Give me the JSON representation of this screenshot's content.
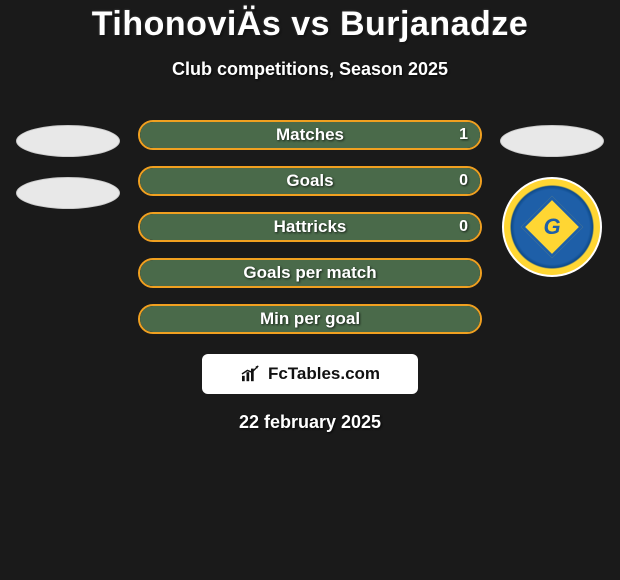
{
  "title": "TihonoviÄs vs Burjanadze",
  "subtitle": "Club competitions, Season 2025",
  "date": "22 february 2025",
  "footer_site": "FcTables.com",
  "colors": {
    "background": "#1a1a1a",
    "bar_border": "#f0a020",
    "bar_fill": "#4a6a4a",
    "text": "#ffffff",
    "badge_blue": "#1e5fa8",
    "badge_yellow": "#ffd633"
  },
  "stats": [
    {
      "label": "Matches",
      "left_fill_pct": 100,
      "right_value": "1"
    },
    {
      "label": "Goals",
      "left_fill_pct": 100,
      "right_value": "0"
    },
    {
      "label": "Hattricks",
      "left_fill_pct": 100,
      "right_value": "0"
    },
    {
      "label": "Goals per match",
      "left_fill_pct": 100,
      "right_value": ""
    },
    {
      "label": "Min per goal",
      "left_fill_pct": 100,
      "right_value": ""
    }
  ],
  "left_player": {
    "placeholders": [
      "oval",
      "oval"
    ]
  },
  "right_player": {
    "placeholders": [
      "oval"
    ],
    "club_badge_letter": "G"
  }
}
